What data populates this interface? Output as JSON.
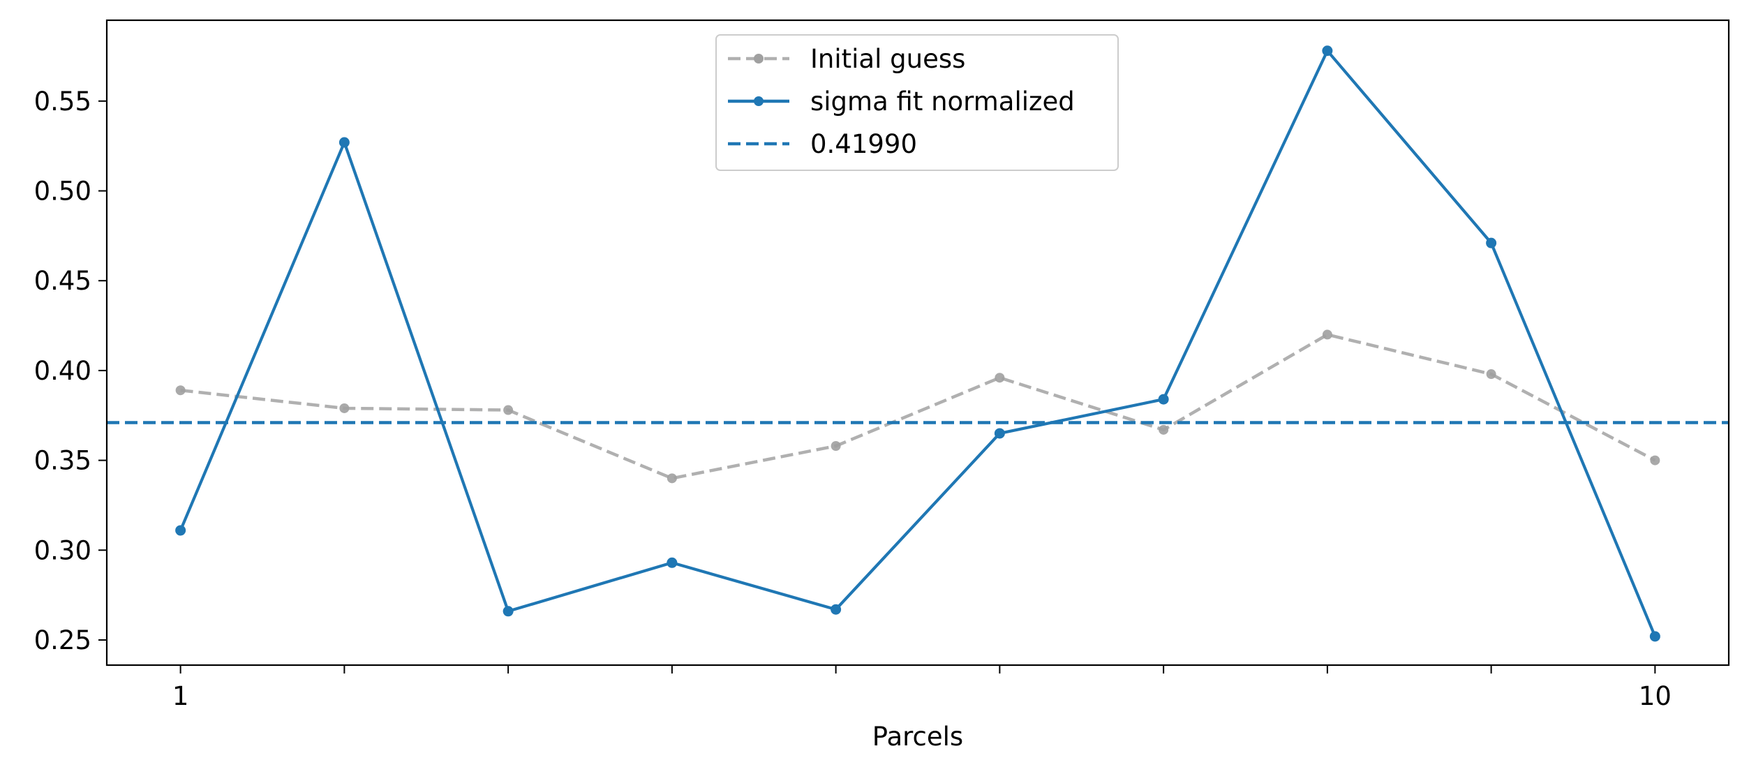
{
  "chart_data": {
    "type": "line",
    "title": "",
    "xlabel": "Parcels",
    "ylabel": "",
    "x": [
      1,
      2,
      3,
      4,
      5,
      6,
      7,
      8,
      9,
      10
    ],
    "x_tick_values": [
      1,
      2,
      3,
      4,
      5,
      6,
      7,
      8,
      9,
      10
    ],
    "x_tick_labels": [
      "1",
      "",
      "",
      "",
      "",
      "",
      "",
      "",
      "",
      "10"
    ],
    "xlim": [
      0.55,
      10.45
    ],
    "ylim": [
      0.236,
      0.595
    ],
    "y_ticks": [
      0.25,
      0.3,
      0.35,
      0.4,
      0.45,
      0.5,
      0.55
    ],
    "y_tick_labels": [
      "0.25",
      "0.30",
      "0.35",
      "0.40",
      "0.45",
      "0.50",
      "0.55"
    ],
    "grid": false,
    "legend_position": "upper center",
    "series": [
      {
        "name": "Initial guess",
        "style": "dashed-markers",
        "color": "#b0b0b0",
        "values": [
          0.389,
          0.379,
          0.378,
          0.34,
          0.358,
          0.396,
          0.367,
          0.42,
          0.398,
          0.35
        ]
      },
      {
        "name": "sigma fit normalized",
        "style": "solid-markers",
        "color": "#1f77b4",
        "values": [
          0.311,
          0.527,
          0.266,
          0.293,
          0.267,
          0.365,
          0.384,
          0.578,
          0.471,
          0.252
        ]
      },
      {
        "name": "0.41990",
        "style": "dashed-hline",
        "color": "#1f77b4",
        "y": 0.371
      }
    ]
  }
}
